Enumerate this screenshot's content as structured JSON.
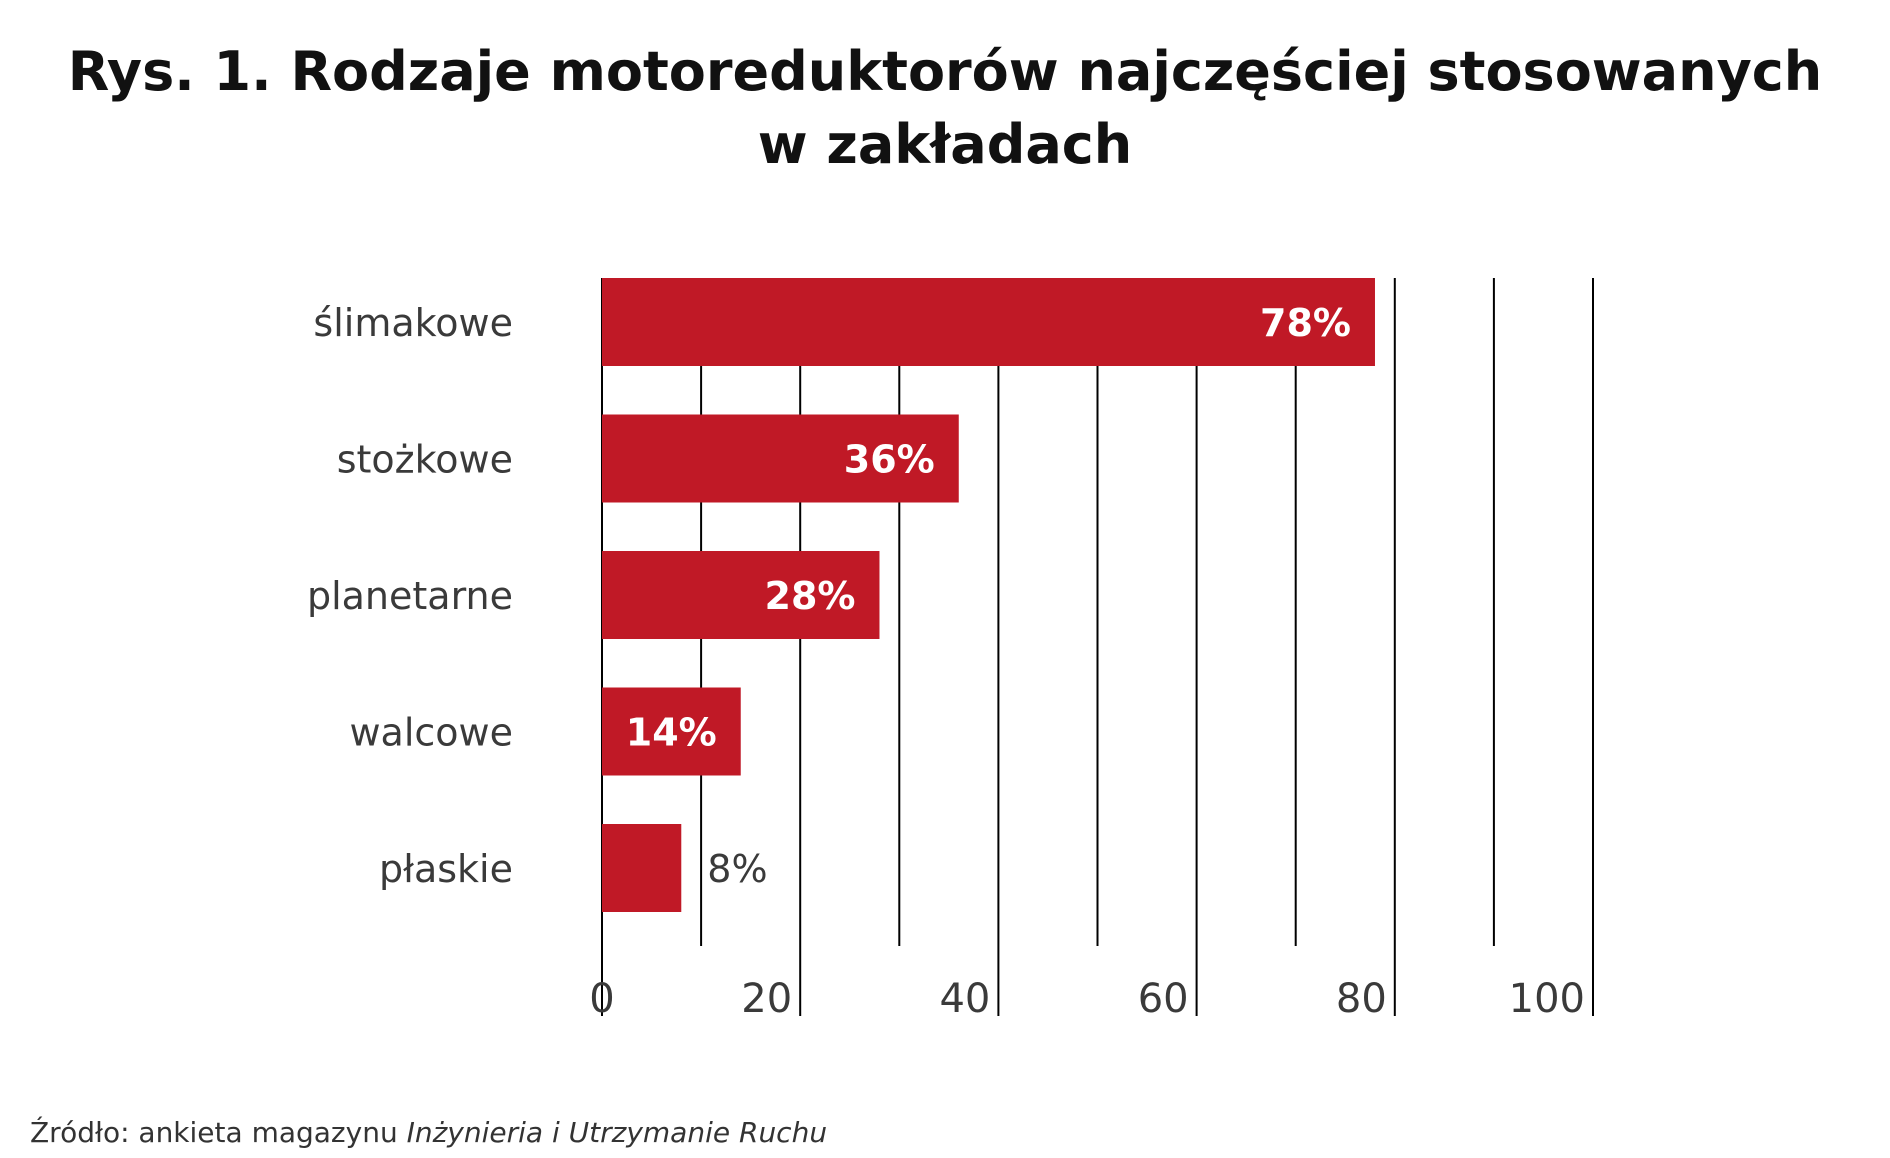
{
  "chart_data": {
    "type": "bar",
    "orientation": "horizontal",
    "title_lines": [
      "Rys. 1. Rodzaje motoreduktorów najczęściej stosowanych",
      "w zakładach"
    ],
    "categories": [
      "ślimakowe",
      "stożkowe",
      "planetarne",
      "walcowe",
      "płaskie"
    ],
    "values": [
      78,
      36,
      28,
      14,
      8
    ],
    "data_labels": [
      "78%",
      "36%",
      "28%",
      "14%",
      "8%"
    ],
    "xlim": [
      0,
      100
    ],
    "x_ticks": [
      0,
      20,
      40,
      60,
      80,
      100
    ],
    "grid": "vertical",
    "bar_color": "#c01926",
    "grid_color": "#000000",
    "legend": "none"
  },
  "source": {
    "prefix": "Źródło: ankieta magazynu ",
    "publication": "Inżynieria i Utrzymanie Ruchu"
  }
}
